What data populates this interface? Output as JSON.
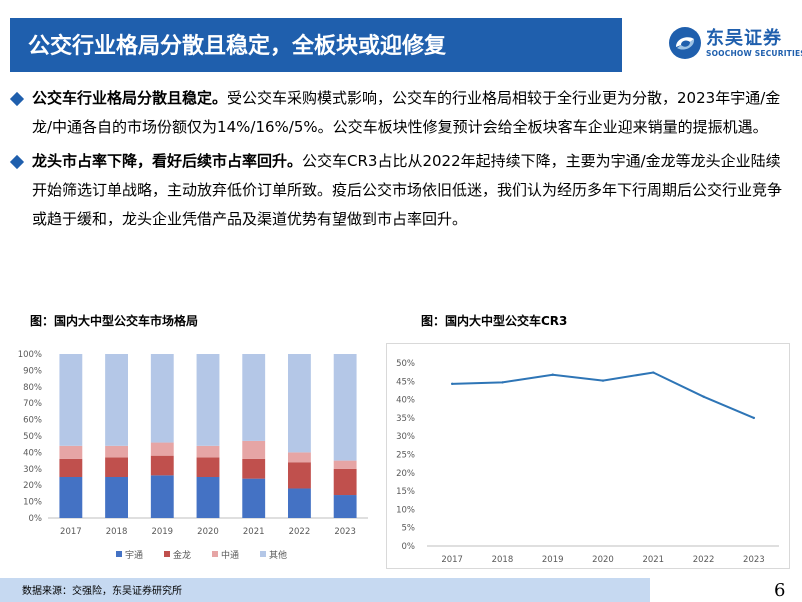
{
  "header": {
    "title": "公交行业格局分散且稳定，全板块或迎修复",
    "logo_name": "东吴证券",
    "logo_sub": "SOOCHOW SECURITIES"
  },
  "bullets": [
    {
      "lead": "公交车行业格局分散且稳定。",
      "text": "受公交车采购模式影响，公交车的行业格局相较于全行业更为分散，2023年宇通/金龙/中通各自的市场份额仅为14%/16%/5%。公交车板块性修复预计会给全板块客车企业迎来销量的提振机遇。"
    },
    {
      "lead": "龙头市占率下降，看好后续市占率回升。",
      "text": "公交车CR3占比从2022年起持续下降，主要为宇通/金龙等龙头企业陆续开始筛选订单战略，主动放弃低价订单所致。疫后公交市场依旧低迷，我们认为经历多年下行周期后公交行业竞争或趋于缓和，龙头企业凭借产品及渠道优势有望做到市占率回升。"
    }
  ],
  "chart_data": [
    {
      "type": "bar",
      "stacked": true,
      "title": "图：国内大中型公交车市场格局",
      "categories": [
        "2017",
        "2018",
        "2019",
        "2020",
        "2021",
        "2022",
        "2023"
      ],
      "series": [
        {
          "name": "宇通",
          "color": "#4472c4",
          "values": [
            25,
            25,
            26,
            25,
            24,
            18,
            14
          ]
        },
        {
          "name": "金龙",
          "color": "#c0504d",
          "values": [
            11,
            12,
            12,
            12,
            12,
            16,
            16
          ]
        },
        {
          "name": "中通",
          "color": "#e6a5a5",
          "values": [
            8,
            7,
            8,
            7,
            11,
            6,
            5
          ]
        },
        {
          "name": "其他",
          "color": "#b4c7e7",
          "values": [
            56,
            56,
            54,
            56,
            53,
            60,
            65
          ]
        }
      ],
      "ylim": [
        0,
        100
      ],
      "y_ticks": [
        "0%",
        "10%",
        "20%",
        "30%",
        "40%",
        "50%",
        "60%",
        "70%",
        "80%",
        "90%",
        "100%"
      ],
      "grid": false,
      "legend": "bottom"
    },
    {
      "type": "line",
      "title": "图：国内大中型公交车CR3",
      "categories": [
        "2017",
        "2018",
        "2019",
        "2020",
        "2021",
        "2022",
        "2023"
      ],
      "series": [
        {
          "name": "",
          "color": "#2e75b6",
          "values": [
            44.3,
            44.7,
            46.8,
            45.2,
            47.4,
            40.8,
            35.0
          ]
        }
      ],
      "ylim": [
        0,
        50
      ],
      "y_ticks": [
        "0%",
        "5%",
        "10%",
        "15%",
        "20%",
        "25%",
        "30%",
        "35%",
        "40%",
        "45%",
        "50%"
      ],
      "grid": false,
      "legend": "none"
    }
  ],
  "footer": {
    "source": "数据来源：交强险，东吴证券研究所",
    "page": "6"
  }
}
